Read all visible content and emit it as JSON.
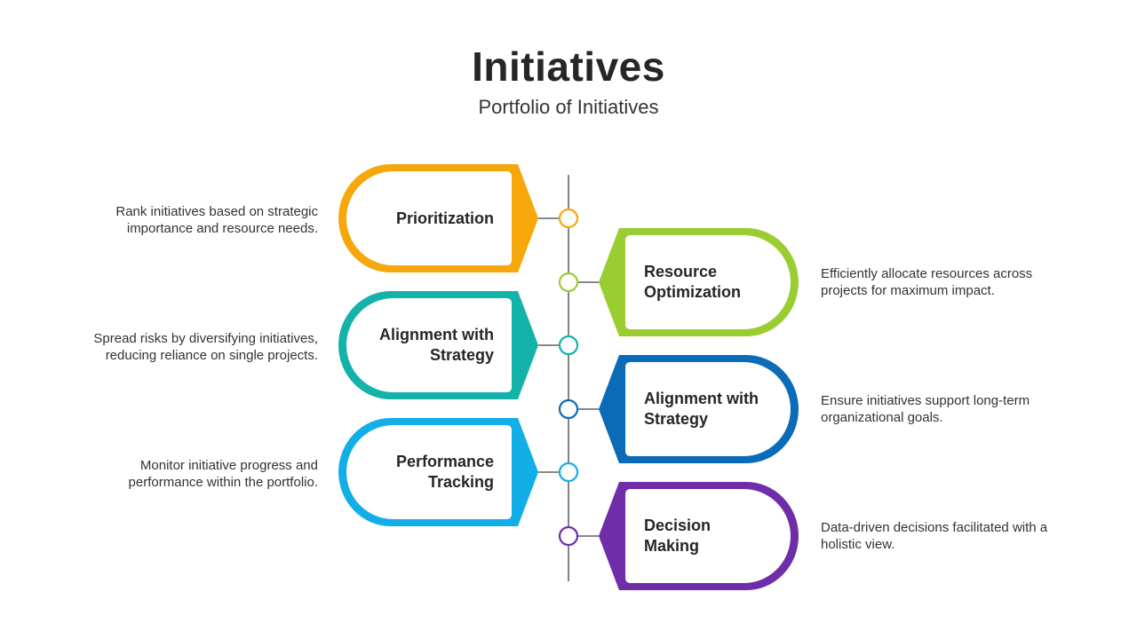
{
  "header": {
    "title": "Initiatives",
    "subtitle": "Portfolio of Initiatives"
  },
  "items": [
    {
      "label_line1": "Prioritization",
      "label_line2": "",
      "description": "Rank initiatives based on strategic importance and resource needs.",
      "color": "#F5A70B",
      "side": "left"
    },
    {
      "label_line1": "Resource",
      "label_line2": "Optimization",
      "description": "Efficiently allocate resources across projects for maximum impact.",
      "color": "#9ACD32",
      "side": "right"
    },
    {
      "label_line1": "Alignment with",
      "label_line2": "Strategy",
      "description": "Spread risks by diversifying initiatives, reducing reliance on single projects.",
      "color": "#14B3A9",
      "side": "left"
    },
    {
      "label_line1": "Alignment with",
      "label_line2": "Strategy",
      "description": "Ensure initiatives support long-term organizational goals.",
      "color": "#0A6BB8",
      "side": "right"
    },
    {
      "label_line1": "Performance",
      "label_line2": "Tracking",
      "description": "Monitor initiative progress and performance within the portfolio.",
      "color": "#12AEE8",
      "side": "left"
    },
    {
      "label_line1": "Decision",
      "label_line2": "Making",
      "description": "Data-driven decisions facilitated with a holistic view.",
      "color": "#6F2DA8",
      "side": "right"
    }
  ]
}
